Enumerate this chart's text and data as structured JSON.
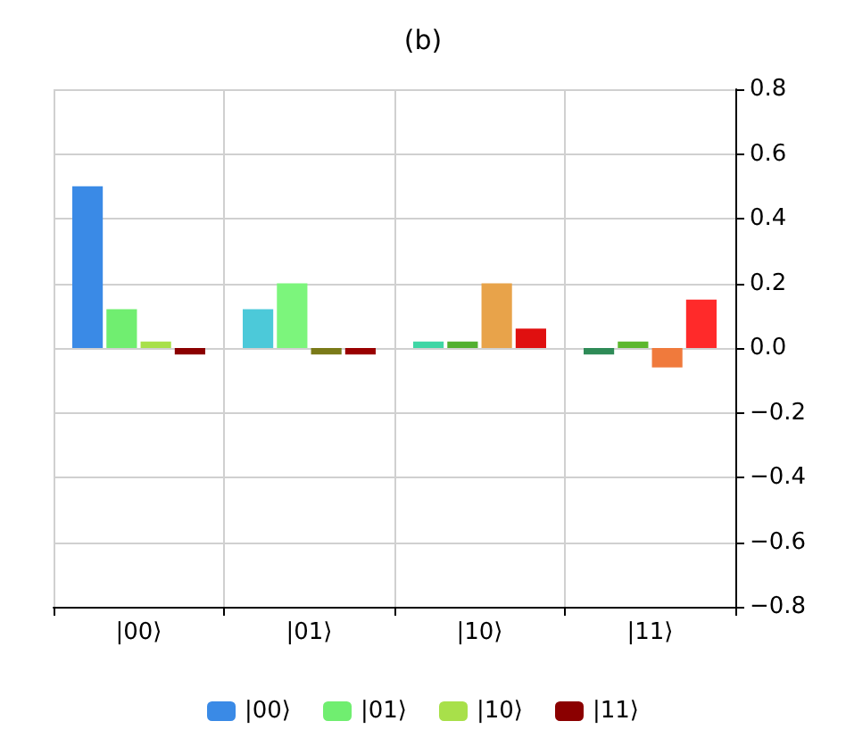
{
  "chart_data": {
    "type": "bar",
    "title": "(b)",
    "categories": [
      "|00⟩",
      "|01⟩",
      "|10⟩",
      "|11⟩"
    ],
    "series": [
      {
        "name": "|00⟩",
        "colors": [
          "#3a8ae6",
          "#4cc9d9",
          "#3fd6a5",
          "#2e8b57"
        ],
        "values": [
          0.5,
          0.12,
          0.02,
          -0.02
        ]
      },
      {
        "name": "|01⟩",
        "colors": [
          "#70ee70",
          "#7cf57c",
          "#52b030",
          "#5cb82e"
        ],
        "values": [
          0.12,
          0.2,
          0.02,
          0.02
        ]
      },
      {
        "name": "|10⟩",
        "colors": [
          "#a8e04a",
          "#7a7a18",
          "#e8a34a",
          "#f07a3c"
        ],
        "values": [
          0.02,
          -0.02,
          0.2,
          -0.06
        ]
      },
      {
        "name": "|11⟩",
        "colors": [
          "#8b0000",
          "#990000",
          "#e01010",
          "#ff2a2a"
        ],
        "values": [
          -0.02,
          -0.02,
          0.06,
          0.15
        ]
      }
    ],
    "ylim": [
      -0.8,
      0.8
    ],
    "yticks": [
      {
        "value": -0.8,
        "label": "−0.8"
      },
      {
        "value": -0.6,
        "label": "−0.6"
      },
      {
        "value": -0.4,
        "label": "−0.4"
      },
      {
        "value": -0.2,
        "label": "−0.2"
      },
      {
        "value": 0,
        "label": "0.0"
      },
      0.2,
      0.4,
      0.6,
      0.8
    ],
    "grid": true,
    "legend": "bottom"
  }
}
